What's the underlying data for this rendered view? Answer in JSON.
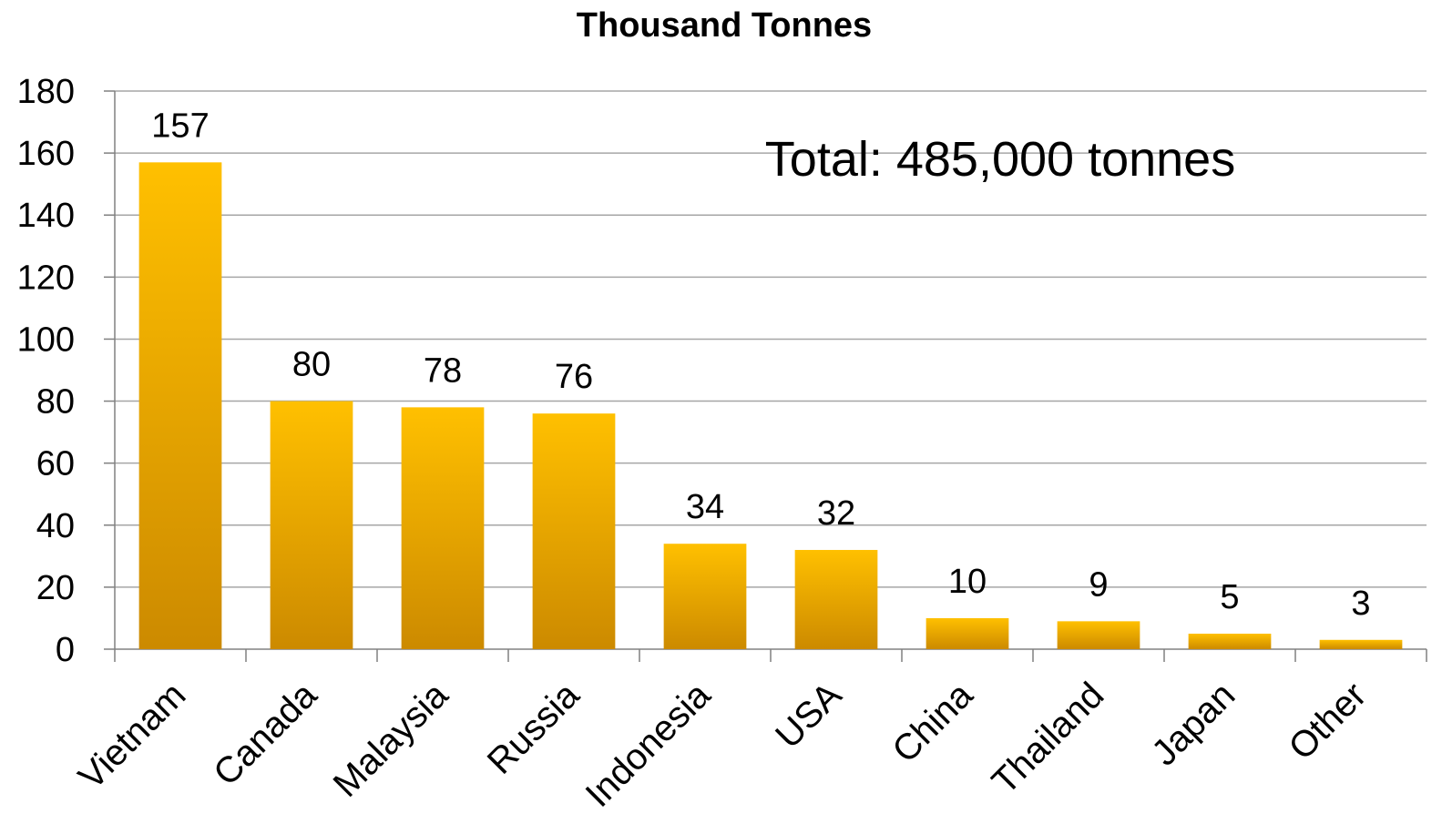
{
  "chart_data": {
    "type": "bar",
    "title": "Thousand Tonnes",
    "annotation": "Total: 485,000 tonnes",
    "categories": [
      "Vietnam",
      "Canada",
      "Malaysia",
      "Russia",
      "Indonesia",
      "USA",
      "China",
      "Thailand",
      "Japan",
      "Other"
    ],
    "values": [
      157,
      80,
      78,
      76,
      34,
      32,
      10,
      9,
      5,
      3
    ],
    "data_labels": [
      "157",
      "80",
      "78",
      "76",
      "34",
      "32",
      "10",
      "9",
      "5",
      "3"
    ],
    "ylim": [
      0,
      180
    ],
    "yticks": [
      0,
      20,
      40,
      60,
      80,
      100,
      120,
      140,
      160,
      180
    ],
    "ytick_labels": [
      "0",
      "20",
      "40",
      "60",
      "80",
      "100",
      "120",
      "140",
      "160",
      "180"
    ],
    "xlabel": "",
    "ylabel": "",
    "grid": true,
    "legend": "none",
    "colors": {
      "bar_top": "#ffc000",
      "bar_bottom": "#cc8a00",
      "grid": "#a6a6a6",
      "axis": "#808080"
    }
  }
}
